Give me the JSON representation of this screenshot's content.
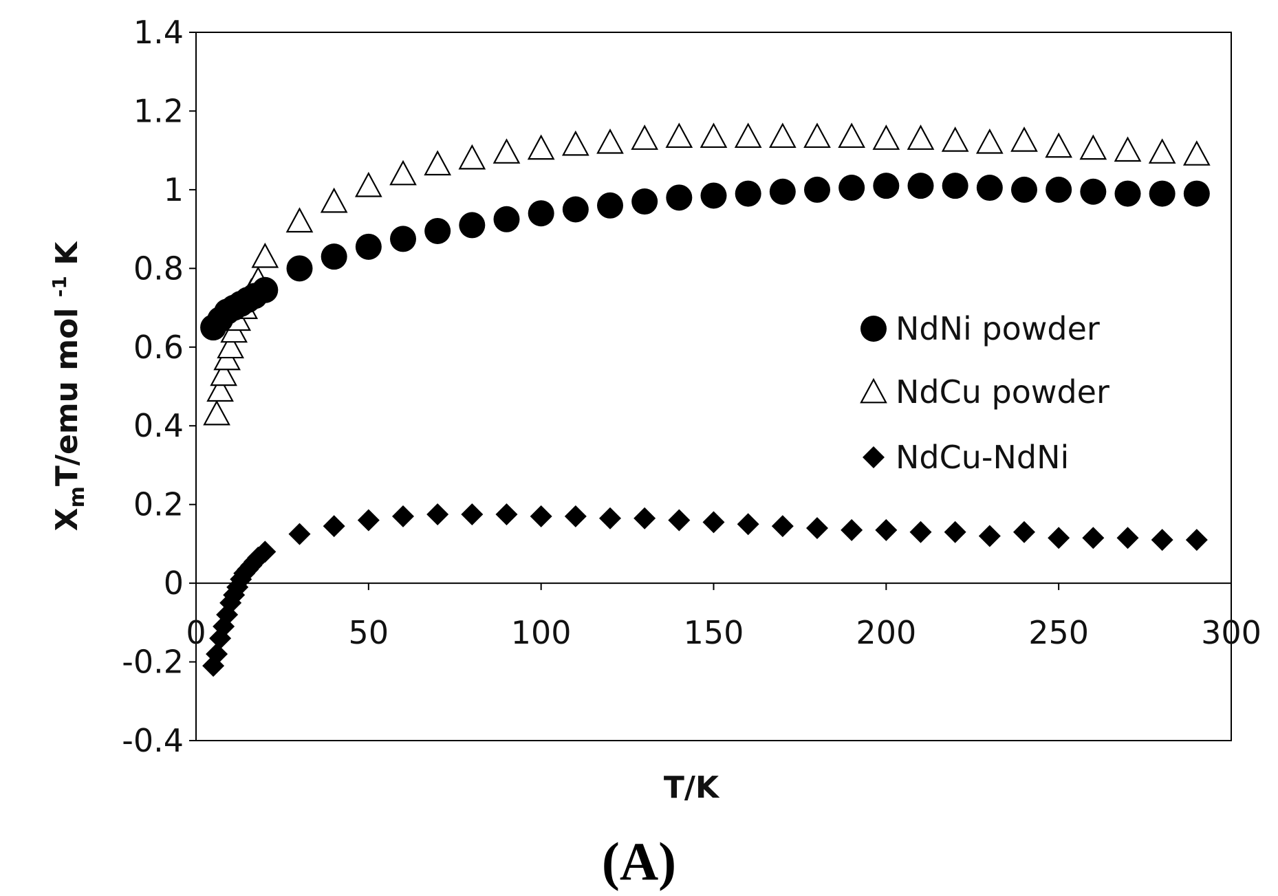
{
  "caption": "(A)",
  "chart_data": {
    "type": "scatter",
    "xlabel": "T/K",
    "ylabel": "XₘT/emu mol⁻¹ K",
    "ylabel_parts": {
      "chi": "X",
      "sub": "m",
      "main": "T/emu mol ",
      "sup": "-1",
      "end": " K"
    },
    "xlim": [
      0,
      300
    ],
    "ylim": [
      -0.4,
      1.4
    ],
    "xticks": [
      0,
      50,
      100,
      150,
      200,
      250,
      300
    ],
    "yticks": [
      -0.4,
      -0.2,
      0,
      0.2,
      0.4,
      0.6,
      0.8,
      1,
      1.2,
      1.4
    ],
    "grid": false,
    "legend_position": "right",
    "series": [
      {
        "name": "NdNi powder",
        "marker": "circle",
        "x": [
          5,
          7,
          9,
          11,
          13,
          15,
          17,
          20,
          30,
          40,
          50,
          60,
          70,
          80,
          90,
          100,
          110,
          120,
          130,
          140,
          150,
          160,
          170,
          180,
          190,
          200,
          210,
          220,
          230,
          240,
          250,
          260,
          270,
          280,
          290
        ],
        "y": [
          0.65,
          0.67,
          0.69,
          0.7,
          0.71,
          0.72,
          0.73,
          0.745,
          0.8,
          0.83,
          0.855,
          0.875,
          0.895,
          0.91,
          0.925,
          0.94,
          0.95,
          0.96,
          0.97,
          0.98,
          0.985,
          0.99,
          0.995,
          1.0,
          1.005,
          1.01,
          1.01,
          1.01,
          1.005,
          1.0,
          1.0,
          0.995,
          0.99,
          0.99,
          0.99
        ]
      },
      {
        "name": "NdCu powder",
        "marker": "triangle",
        "x": [
          6,
          7,
          8,
          9,
          10,
          11,
          12,
          14,
          16,
          18,
          20,
          30,
          40,
          50,
          60,
          70,
          80,
          90,
          100,
          110,
          120,
          130,
          140,
          150,
          160,
          170,
          180,
          190,
          200,
          210,
          220,
          230,
          240,
          250,
          260,
          270,
          280,
          290
        ],
        "y": [
          0.43,
          0.49,
          0.53,
          0.57,
          0.6,
          0.64,
          0.67,
          0.7,
          0.74,
          0.77,
          0.83,
          0.92,
          0.97,
          1.01,
          1.04,
          1.065,
          1.08,
          1.095,
          1.105,
          1.115,
          1.12,
          1.13,
          1.135,
          1.135,
          1.135,
          1.135,
          1.135,
          1.135,
          1.13,
          1.13,
          1.125,
          1.12,
          1.125,
          1.11,
          1.105,
          1.1,
          1.095,
          1.09
        ]
      },
      {
        "name": "NdCu-NdNi",
        "marker": "diamond",
        "x": [
          5,
          6,
          7,
          8,
          9,
          10,
          11,
          12,
          13,
          14,
          15,
          16,
          17,
          18,
          20,
          30,
          40,
          50,
          60,
          70,
          80,
          90,
          100,
          110,
          120,
          130,
          140,
          150,
          160,
          170,
          180,
          190,
          200,
          210,
          220,
          230,
          240,
          250,
          260,
          270,
          280,
          290
        ],
        "y": [
          -0.21,
          -0.18,
          -0.14,
          -0.11,
          -0.08,
          -0.05,
          -0.03,
          -0.01,
          0.01,
          0.025,
          0.035,
          0.045,
          0.055,
          0.065,
          0.08,
          0.125,
          0.145,
          0.16,
          0.17,
          0.175,
          0.175,
          0.175,
          0.17,
          0.17,
          0.165,
          0.165,
          0.16,
          0.155,
          0.15,
          0.145,
          0.14,
          0.135,
          0.135,
          0.13,
          0.13,
          0.12,
          0.13,
          0.115,
          0.115,
          0.115,
          0.11,
          0.11
        ]
      }
    ]
  }
}
